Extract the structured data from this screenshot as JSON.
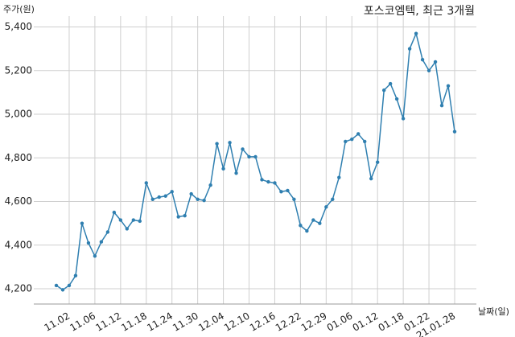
{
  "chart_data": {
    "type": "line",
    "title": "포스코엠텍, 최근 3개월",
    "y_label": "주가(원)",
    "x_label": "날짜(일)",
    "categories": [
      null,
      null,
      "11.02",
      null,
      null,
      null,
      "11.06",
      null,
      null,
      null,
      "11.12",
      null,
      null,
      null,
      "11.18",
      null,
      null,
      null,
      "11.24",
      null,
      null,
      null,
      "11.30",
      null,
      null,
      null,
      "12.04",
      null,
      null,
      null,
      "12.10",
      null,
      null,
      null,
      "12.16",
      null,
      null,
      null,
      "12.22",
      null,
      null,
      null,
      "12.29",
      null,
      null,
      null,
      "01.06",
      null,
      null,
      null,
      "01.12",
      null,
      null,
      null,
      "01.18",
      null,
      null,
      null,
      "01.22",
      null,
      null,
      null,
      "21.01.28"
    ],
    "values": [
      4215,
      4195,
      4215,
      4260,
      4500,
      4410,
      4350,
      4415,
      4460,
      4550,
      4515,
      4475,
      4515,
      4510,
      4685,
      4610,
      4620,
      4625,
      4645,
      4530,
      4535,
      4635,
      4610,
      4605,
      4675,
      4865,
      4750,
      4870,
      4730,
      4840,
      4805,
      4805,
      4700,
      4690,
      4685,
      4645,
      4650,
      4610,
      4490,
      4465,
      4515,
      4500,
      4575,
      4610,
      4710,
      4875,
      4885,
      4910,
      4875,
      4705,
      4780,
      5110,
      5140,
      5070,
      4980,
      5300,
      5370,
      5250,
      5200,
      5240,
      5040,
      5130,
      4920
    ],
    "color": "#2f7fb0",
    "ylim": [
      4130,
      5450
    ],
    "yticks": [
      {
        "value": 4200,
        "label": "4,200"
      },
      {
        "value": 4400,
        "label": "4,400"
      },
      {
        "value": 4600,
        "label": "4,600"
      },
      {
        "value": 4800,
        "label": "4,800"
      },
      {
        "value": 5000,
        "label": "5,000"
      },
      {
        "value": 5200,
        "label": "5,200"
      },
      {
        "value": 5400,
        "label": "5,400"
      }
    ],
    "grid": true
  }
}
